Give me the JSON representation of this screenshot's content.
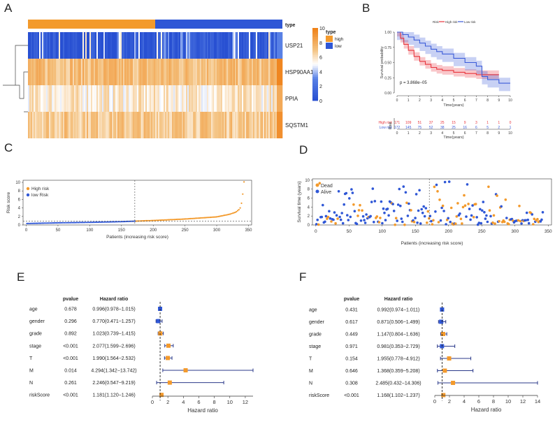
{
  "colors": {
    "high": "#f39a2c",
    "low": "#2f57d6",
    "km_high": "#e8343c",
    "km_low": "#3b5bd8"
  },
  "panel_labels": {
    "a": "A",
    "b": "B",
    "c": "C",
    "d": "D",
    "e": "E",
    "f": "F"
  },
  "chart_data": [
    {
      "id": "A",
      "type": "heatmap",
      "annotation_label": "type",
      "legend_title": "type",
      "legend_groups": [
        "high",
        "low"
      ],
      "scale_ticks": [
        "10",
        "8",
        "6",
        "4",
        "2",
        "0"
      ],
      "genes": [
        "USP21",
        "HSP90AA1",
        "PPIA",
        "SQSTM1"
      ],
      "split_fraction": 0.5,
      "row_levels": [
        0.4,
        7.3,
        5.7,
        6.9
      ]
    },
    {
      "id": "B",
      "type": "line",
      "legend_title": "Risk",
      "legend": [
        "High risk",
        "Low risk"
      ],
      "xlabel": "Time(years)",
      "ylabel": "Survival probability",
      "xticks": [
        "0",
        "1",
        "2",
        "3",
        "4",
        "5",
        "6",
        "7",
        "8",
        "9",
        "10"
      ],
      "yticks": [
        "0.00",
        "0.25",
        "0.50",
        "0.75",
        "1.00"
      ],
      "xlim": [
        0,
        10
      ],
      "ylim": [
        0,
        1
      ],
      "pvalue_text": "p = 3.868e−05",
      "series": [
        {
          "name": "High risk",
          "x": [
            0,
            0.3,
            0.6,
            1,
            1.5,
            2,
            2.5,
            3,
            3.5,
            4,
            5,
            6,
            7,
            8,
            9
          ],
          "y": [
            1,
            0.9,
            0.8,
            0.7,
            0.6,
            0.52,
            0.47,
            0.42,
            0.39,
            0.37,
            0.34,
            0.32,
            0.3,
            0.3,
            0.3
          ]
        },
        {
          "name": "Low risk",
          "x": [
            0,
            0.5,
            1,
            1.5,
            2,
            2.5,
            3,
            3.5,
            4,
            5,
            6,
            7,
            7.5,
            8,
            9,
            10
          ],
          "y": [
            1,
            0.96,
            0.92,
            0.87,
            0.82,
            0.77,
            0.72,
            0.68,
            0.64,
            0.57,
            0.5,
            0.44,
            0.27,
            0.22,
            0.16,
            0.16
          ]
        }
      ],
      "risk_table": {
        "ylabel": "Risk",
        "rows": [
          {
            "label": "High risk",
            "counts": [
              "171",
              "109",
              "51",
              "37",
              "25",
              "15",
              "9",
              "3",
              "1",
              "1",
              "0"
            ]
          },
          {
            "label": "Low risk",
            "counts": [
              "172",
              "145",
              "75",
              "52",
              "38",
              "25",
              "16",
              "6",
              "5",
              "2",
              "1"
            ]
          }
        ],
        "xlabel": "Time(years)"
      }
    },
    {
      "id": "C",
      "type": "scatter",
      "xlabel": "Patients (increasing risk score)",
      "ylabel": "Risk score",
      "legend": [
        "High risk",
        "low Risk"
      ],
      "xticks": [
        "0",
        "50",
        "100",
        "150",
        "200",
        "250",
        "300",
        "350"
      ],
      "yticks": [
        "0",
        "2",
        "4",
        "6",
        "8",
        "10"
      ],
      "xlim": [
        -5,
        355
      ],
      "ylim": [
        0,
        10.5
      ],
      "cutoff_index": 171,
      "cutoff_value": 0.9,
      "n": 343,
      "score_curve": {
        "index": [
          1,
          50,
          100,
          150,
          171,
          200,
          250,
          300,
          320,
          330,
          335,
          338,
          340,
          342,
          343
        ],
        "score": [
          0.35,
          0.5,
          0.62,
          0.78,
          0.9,
          1.05,
          1.4,
          1.9,
          2.5,
          3,
          3.6,
          4.2,
          6,
          8.5,
          10.1
        ]
      }
    },
    {
      "id": "D",
      "type": "scatter",
      "xlabel": "Patients (increasing risk score)",
      "ylabel": "Survival time (years)",
      "legend": [
        "Dead",
        "Alive"
      ],
      "xticks": [
        "0",
        "50",
        "100",
        "150",
        "200",
        "250",
        "300",
        "350"
      ],
      "yticks": [
        "0",
        "2",
        "4",
        "6",
        "8",
        "10"
      ],
      "xlim": [
        -5,
        355
      ],
      "ylim": [
        0,
        10.3
      ],
      "cutoff_index": 171,
      "n": 343
    },
    {
      "id": "E",
      "type": "forest",
      "col_pvalue": "pvalue",
      "col_hr": "Hazard ratio",
      "xlabel": "Hazard ratio",
      "xticks": [
        "0",
        "2",
        "4",
        "6",
        "8",
        "10",
        "12"
      ],
      "xlim": [
        0,
        13
      ],
      "rows": [
        {
          "name": "age",
          "pvalue": "0.678",
          "hr_text": "0.996(0.978−1.015)",
          "hr": 0.996,
          "lo": 0.978,
          "hi": 1.015
        },
        {
          "name": "gender",
          "pvalue": "0.296",
          "hr_text": "0.770(0.471−1.257)",
          "hr": 0.77,
          "lo": 0.471,
          "hi": 1.257
        },
        {
          "name": "grade",
          "pvalue": "0.892",
          "hr_text": "1.023(0.739−1.415)",
          "hr": 1.023,
          "lo": 0.739,
          "hi": 1.415
        },
        {
          "name": "stage",
          "pvalue": "<0.001",
          "hr_text": "2.077(1.599−2.696)",
          "hr": 2.077,
          "lo": 1.599,
          "hi": 2.696
        },
        {
          "name": "T",
          "pvalue": "<0.001",
          "hr_text": "1.990(1.564−2.532)",
          "hr": 1.99,
          "lo": 1.564,
          "hi": 2.532
        },
        {
          "name": "M",
          "pvalue": "0.014",
          "hr_text": "4.294(1.342−13.742)",
          "hr": 4.294,
          "lo": 1.342,
          "hi": 13.742
        },
        {
          "name": "N",
          "pvalue": "0.261",
          "hr_text": "2.246(0.547−9.219)",
          "hr": 2.246,
          "lo": 0.547,
          "hi": 9.219
        },
        {
          "name": "riskScore",
          "pvalue": "<0.001",
          "hr_text": "1.181(1.120−1.246)",
          "hr": 1.181,
          "lo": 1.12,
          "hi": 1.246
        }
      ]
    },
    {
      "id": "F",
      "type": "forest",
      "col_pvalue": "pvalue",
      "col_hr": "Hazard ratio",
      "xlabel": "Hazard ratio",
      "xticks": [
        "0",
        "2",
        "4",
        "6",
        "8",
        "10",
        "12",
        "14"
      ],
      "xlim": [
        0,
        14
      ],
      "rows": [
        {
          "name": "age",
          "pvalue": "0.431",
          "hr_text": "0.992(0.974−1.011)",
          "hr": 0.992,
          "lo": 0.974,
          "hi": 1.011
        },
        {
          "name": "gender",
          "pvalue": "0.617",
          "hr_text": "0.871(0.506−1.499)",
          "hr": 0.871,
          "lo": 0.506,
          "hi": 1.499
        },
        {
          "name": "grade",
          "pvalue": "0.449",
          "hr_text": "1.147(0.804−1.636)",
          "hr": 1.147,
          "lo": 0.804,
          "hi": 1.636
        },
        {
          "name": "stage",
          "pvalue": "0.971",
          "hr_text": "0.981(0.353−2.729)",
          "hr": 0.981,
          "lo": 0.353,
          "hi": 2.729
        },
        {
          "name": "T",
          "pvalue": "0.154",
          "hr_text": "1.955(0.778−4.912)",
          "hr": 1.955,
          "lo": 0.778,
          "hi": 4.912
        },
        {
          "name": "M",
          "pvalue": "0.646",
          "hr_text": "1.368(0.359−5.208)",
          "hr": 1.368,
          "lo": 0.359,
          "hi": 5.208
        },
        {
          "name": "N",
          "pvalue": "0.308",
          "hr_text": "2.485(0.432−14.306)",
          "hr": 2.485,
          "lo": 0.432,
          "hi": 14.306
        },
        {
          "name": "riskScore",
          "pvalue": "<0.001",
          "hr_text": "1.168(1.102−1.237)",
          "hr": 1.168,
          "lo": 1.102,
          "hi": 1.237
        }
      ]
    }
  ]
}
